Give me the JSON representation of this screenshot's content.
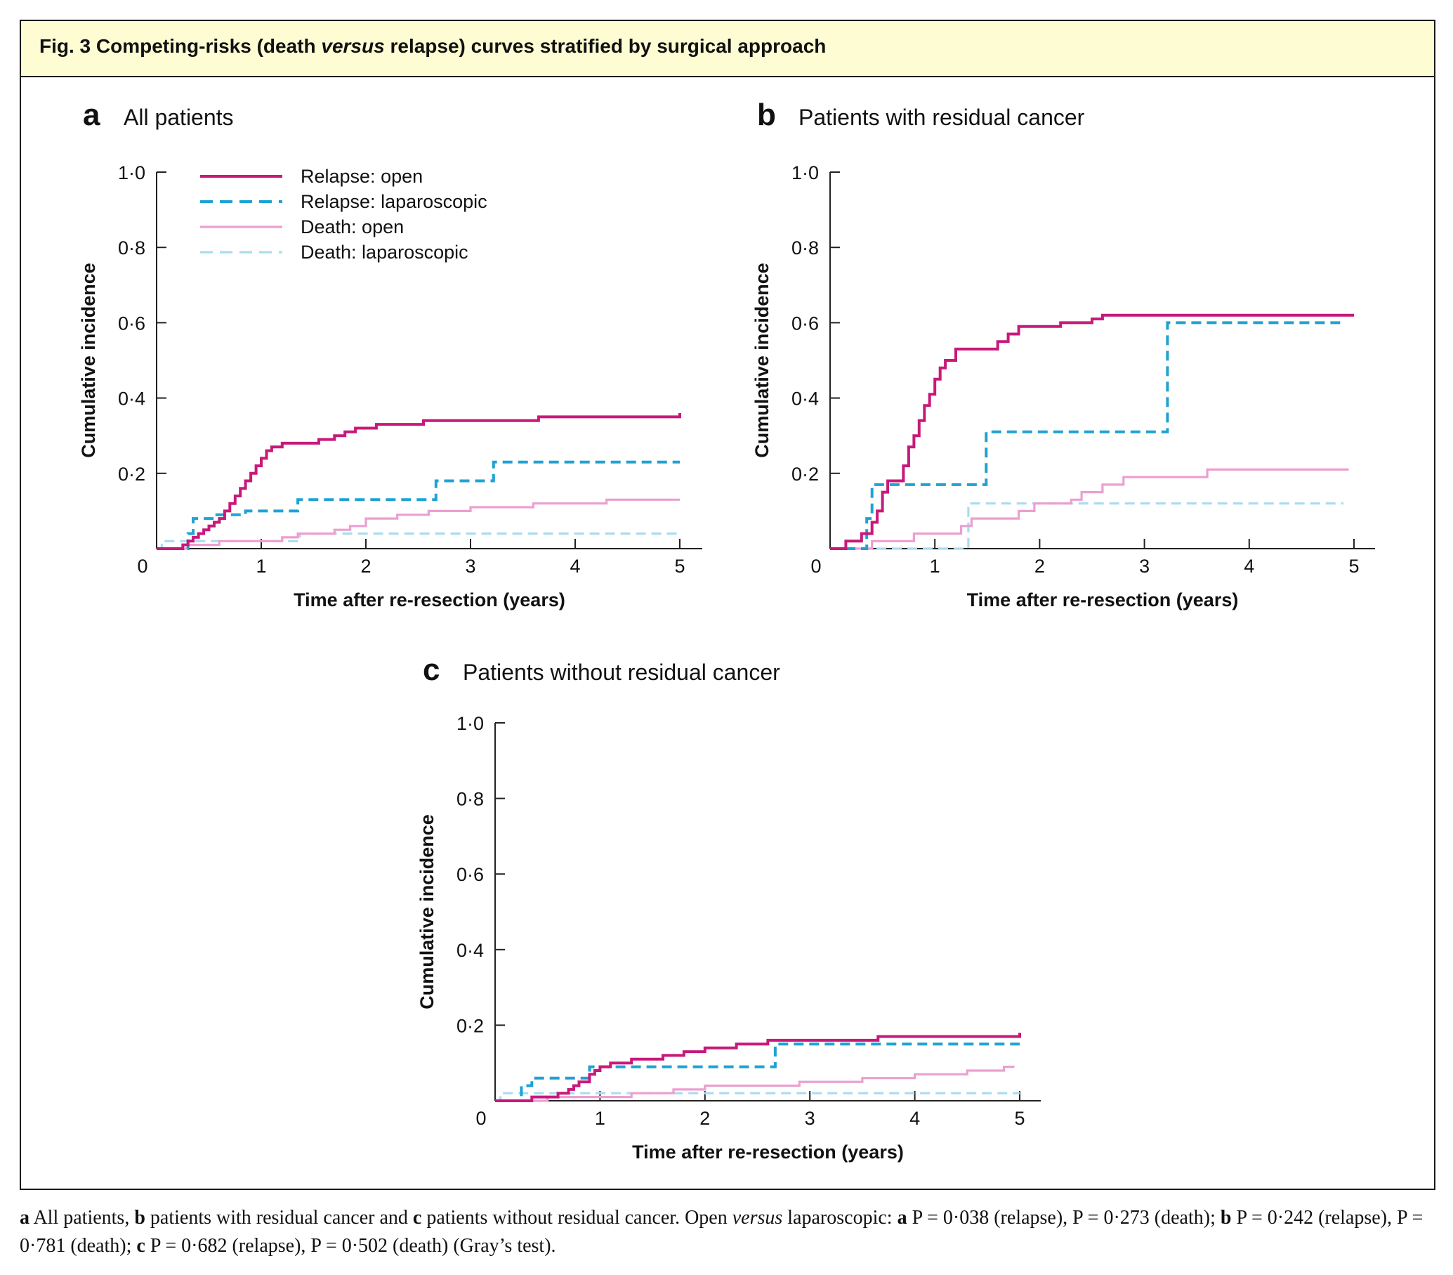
{
  "figure": {
    "fig_label": "Fig. 3",
    "title_before": "Competing-risks (death",
    "title_italic": "versus",
    "title_after": "relapse) curves stratified by surgical approach"
  },
  "caption": {
    "a1": "a",
    "t1": " All patients, ",
    "b1": "b",
    "t2": " patients with residual cancer and ",
    "c1": "c",
    "t3": " patients without residual cancer. Open ",
    "versus": "versus",
    "t4": " laparoscopic: ",
    "a2": "a",
    "t5": " P = 0·038 (relapse), P = 0·273 (death); ",
    "b2": "b",
    "t6": " P = 0·242 (relapse), P = 0·781 (death); ",
    "c2": "c",
    "t7": " P = 0·682 (relapse), P = 0·502 (death) (Gray’s test)."
  },
  "legend": [
    {
      "label": "Relapse: open",
      "color": "#c8197a",
      "dashed": false,
      "width": "thick"
    },
    {
      "label": "Relapse: laparoscopic",
      "color": "#1fa2d3",
      "dashed": true,
      "width": "thick"
    },
    {
      "label": "Death: open",
      "color": "#ec9fd0",
      "dashed": false,
      "width": "thin"
    },
    {
      "label": "Death: laparoscopic",
      "color": "#a9dcf0",
      "dashed": true,
      "width": "thin"
    }
  ],
  "chart_data": [
    {
      "panel": "a",
      "title": "All patients",
      "type": "line",
      "xlabel": "Time after re-resection (years)",
      "ylabel": "Cumulative incidence",
      "xlim": [
        0,
        5
      ],
      "ylim": [
        0,
        1
      ],
      "xticks": [
        "0",
        "1",
        "2",
        "3",
        "4",
        "5"
      ],
      "yticks": [
        "0·2",
        "0·4",
        "0·6",
        "0·8",
        "1·0"
      ],
      "legend_position": "top-left",
      "series": [
        {
          "name": "Relapse: open",
          "points": [
            [
              0,
              0
            ],
            [
              0.2,
              0
            ],
            [
              0.25,
              0.01
            ],
            [
              0.3,
              0.02
            ],
            [
              0.35,
              0.03
            ],
            [
              0.4,
              0.04
            ],
            [
              0.45,
              0.05
            ],
            [
              0.5,
              0.06
            ],
            [
              0.55,
              0.07
            ],
            [
              0.6,
              0.08
            ],
            [
              0.65,
              0.1
            ],
            [
              0.7,
              0.12
            ],
            [
              0.75,
              0.14
            ],
            [
              0.8,
              0.16
            ],
            [
              0.85,
              0.18
            ],
            [
              0.9,
              0.2
            ],
            [
              0.95,
              0.22
            ],
            [
              1.0,
              0.24
            ],
            [
              1.05,
              0.26
            ],
            [
              1.1,
              0.27
            ],
            [
              1.2,
              0.28
            ],
            [
              1.4,
              0.28
            ],
            [
              1.55,
              0.29
            ],
            [
              1.7,
              0.3
            ],
            [
              1.8,
              0.31
            ],
            [
              1.9,
              0.32
            ],
            [
              2.1,
              0.33
            ],
            [
              2.5,
              0.33
            ],
            [
              2.55,
              0.34
            ],
            [
              3.6,
              0.34
            ],
            [
              3.65,
              0.35
            ],
            [
              4.9,
              0.35
            ],
            [
              5.0,
              0.36
            ]
          ]
        },
        {
          "name": "Relapse: laparoscopic",
          "points": [
            [
              0,
              0
            ],
            [
              0.25,
              0
            ],
            [
              0.3,
              0.04
            ],
            [
              0.35,
              0.08
            ],
            [
              0.5,
              0.08
            ],
            [
              0.55,
              0.09
            ],
            [
              0.8,
              0.09
            ],
            [
              0.85,
              0.1
            ],
            [
              1.3,
              0.1
            ],
            [
              1.35,
              0.13
            ],
            [
              2.65,
              0.13
            ],
            [
              2.67,
              0.18
            ],
            [
              3.2,
              0.18
            ],
            [
              3.22,
              0.23
            ],
            [
              5.0,
              0.23
            ]
          ]
        },
        {
          "name": "Death: open",
          "points": [
            [
              0,
              0
            ],
            [
              0.3,
              0.01
            ],
            [
              0.6,
              0.02
            ],
            [
              1.0,
              0.02
            ],
            [
              1.2,
              0.03
            ],
            [
              1.35,
              0.04
            ],
            [
              1.7,
              0.05
            ],
            [
              1.85,
              0.06
            ],
            [
              2.0,
              0.08
            ],
            [
              2.3,
              0.09
            ],
            [
              2.6,
              0.1
            ],
            [
              3.0,
              0.11
            ],
            [
              3.3,
              0.11
            ],
            [
              3.6,
              0.12
            ],
            [
              4.0,
              0.12
            ],
            [
              4.3,
              0.13
            ],
            [
              4.7,
              0.13
            ],
            [
              5.0,
              0.13
            ]
          ]
        },
        {
          "name": "Death: laparoscopic",
          "points": [
            [
              0,
              0
            ],
            [
              0.05,
              0.02
            ],
            [
              1.35,
              0.02
            ],
            [
              1.37,
              0.04
            ],
            [
              5.0,
              0.04
            ]
          ]
        }
      ]
    },
    {
      "panel": "b",
      "title": "Patients with residual cancer",
      "type": "line",
      "xlabel": "Time after re-resection (years)",
      "ylabel": "Cumulative incidence",
      "xlim": [
        0,
        5
      ],
      "ylim": [
        0,
        1
      ],
      "xticks": [
        "0",
        "1",
        "2",
        "3",
        "4",
        "5"
      ],
      "yticks": [
        "0·2",
        "0·4",
        "0·6",
        "0·8",
        "1·0"
      ],
      "series": [
        {
          "name": "Relapse: open",
          "points": [
            [
              0,
              0
            ],
            [
              0.1,
              0
            ],
            [
              0.15,
              0.02
            ],
            [
              0.3,
              0.04
            ],
            [
              0.4,
              0.07
            ],
            [
              0.45,
              0.1
            ],
            [
              0.5,
              0.15
            ],
            [
              0.55,
              0.18
            ],
            [
              0.7,
              0.22
            ],
            [
              0.75,
              0.27
            ],
            [
              0.8,
              0.3
            ],
            [
              0.85,
              0.34
            ],
            [
              0.9,
              0.38
            ],
            [
              0.95,
              0.41
            ],
            [
              1.0,
              0.45
            ],
            [
              1.05,
              0.48
            ],
            [
              1.1,
              0.5
            ],
            [
              1.2,
              0.53
            ],
            [
              1.5,
              0.53
            ],
            [
              1.6,
              0.55
            ],
            [
              1.7,
              0.57
            ],
            [
              1.8,
              0.59
            ],
            [
              2.0,
              0.59
            ],
            [
              2.2,
              0.6
            ],
            [
              2.5,
              0.61
            ],
            [
              2.6,
              0.62
            ],
            [
              5.0,
              0.62
            ]
          ]
        },
        {
          "name": "Relapse: laparoscopic",
          "points": [
            [
              0,
              0
            ],
            [
              0.3,
              0
            ],
            [
              0.35,
              0.08
            ],
            [
              0.4,
              0.17
            ],
            [
              1.47,
              0.17
            ],
            [
              1.49,
              0.31
            ],
            [
              3.2,
              0.31
            ],
            [
              3.22,
              0.6
            ],
            [
              4.9,
              0.6
            ]
          ]
        },
        {
          "name": "Death: open",
          "points": [
            [
              0,
              0
            ],
            [
              0.4,
              0.02
            ],
            [
              0.5,
              0.02
            ],
            [
              0.8,
              0.04
            ],
            [
              1.25,
              0.06
            ],
            [
              1.35,
              0.08
            ],
            [
              1.8,
              0.1
            ],
            [
              1.95,
              0.12
            ],
            [
              2.3,
              0.13
            ],
            [
              2.4,
              0.15
            ],
            [
              2.6,
              0.17
            ],
            [
              2.8,
              0.19
            ],
            [
              3.5,
              0.19
            ],
            [
              3.6,
              0.21
            ],
            [
              4.95,
              0.21
            ]
          ]
        },
        {
          "name": "Death: laparoscopic",
          "points": [
            [
              0,
              0
            ],
            [
              0.08,
              0
            ],
            [
              1.3,
              0
            ],
            [
              1.32,
              0.12
            ],
            [
              4.9,
              0.12
            ]
          ]
        }
      ]
    },
    {
      "panel": "c",
      "title": "Patients without residual cancer",
      "type": "line",
      "xlabel": "Time after re-resection (years)",
      "ylabel": "Cumulative incidence",
      "xlim": [
        0,
        5
      ],
      "ylim": [
        0,
        1
      ],
      "xticks": [
        "0",
        "1",
        "2",
        "3",
        "4",
        "5"
      ],
      "yticks": [
        "0·2",
        "0·4",
        "0·6",
        "0·8",
        "1·0"
      ],
      "series": [
        {
          "name": "Relapse: open",
          "points": [
            [
              0,
              0
            ],
            [
              0.3,
              0
            ],
            [
              0.35,
              0.01
            ],
            [
              0.6,
              0.02
            ],
            [
              0.7,
              0.03
            ],
            [
              0.75,
              0.04
            ],
            [
              0.8,
              0.05
            ],
            [
              0.9,
              0.07
            ],
            [
              0.95,
              0.08
            ],
            [
              1.0,
              0.09
            ],
            [
              1.1,
              0.1
            ],
            [
              1.3,
              0.11
            ],
            [
              1.6,
              0.12
            ],
            [
              1.8,
              0.13
            ],
            [
              2.0,
              0.14
            ],
            [
              2.3,
              0.15
            ],
            [
              2.6,
              0.16
            ],
            [
              3.6,
              0.16
            ],
            [
              3.65,
              0.17
            ],
            [
              4.9,
              0.17
            ],
            [
              5.0,
              0.18
            ]
          ]
        },
        {
          "name": "Relapse: laparoscopic",
          "points": [
            [
              0,
              0
            ],
            [
              0.2,
              0
            ],
            [
              0.25,
              0.04
            ],
            [
              0.35,
              0.06
            ],
            [
              0.8,
              0.06
            ],
            [
              0.9,
              0.09
            ],
            [
              2.65,
              0.09
            ],
            [
              2.67,
              0.15
            ],
            [
              5.0,
              0.15
            ]
          ]
        },
        {
          "name": "Death: open",
          "points": [
            [
              0,
              0
            ],
            [
              0.5,
              0.01
            ],
            [
              1.3,
              0.02
            ],
            [
              1.7,
              0.03
            ],
            [
              2.0,
              0.04
            ],
            [
              2.5,
              0.04
            ],
            [
              2.9,
              0.05
            ],
            [
              3.2,
              0.05
            ],
            [
              3.5,
              0.06
            ],
            [
              4.0,
              0.07
            ],
            [
              4.5,
              0.08
            ],
            [
              4.85,
              0.09
            ],
            [
              4.95,
              0.09
            ]
          ]
        },
        {
          "name": "Death: laparoscopic",
          "points": [
            [
              0,
              0
            ],
            [
              0.05,
              0.02
            ],
            [
              5.0,
              0.02
            ]
          ]
        }
      ]
    }
  ]
}
